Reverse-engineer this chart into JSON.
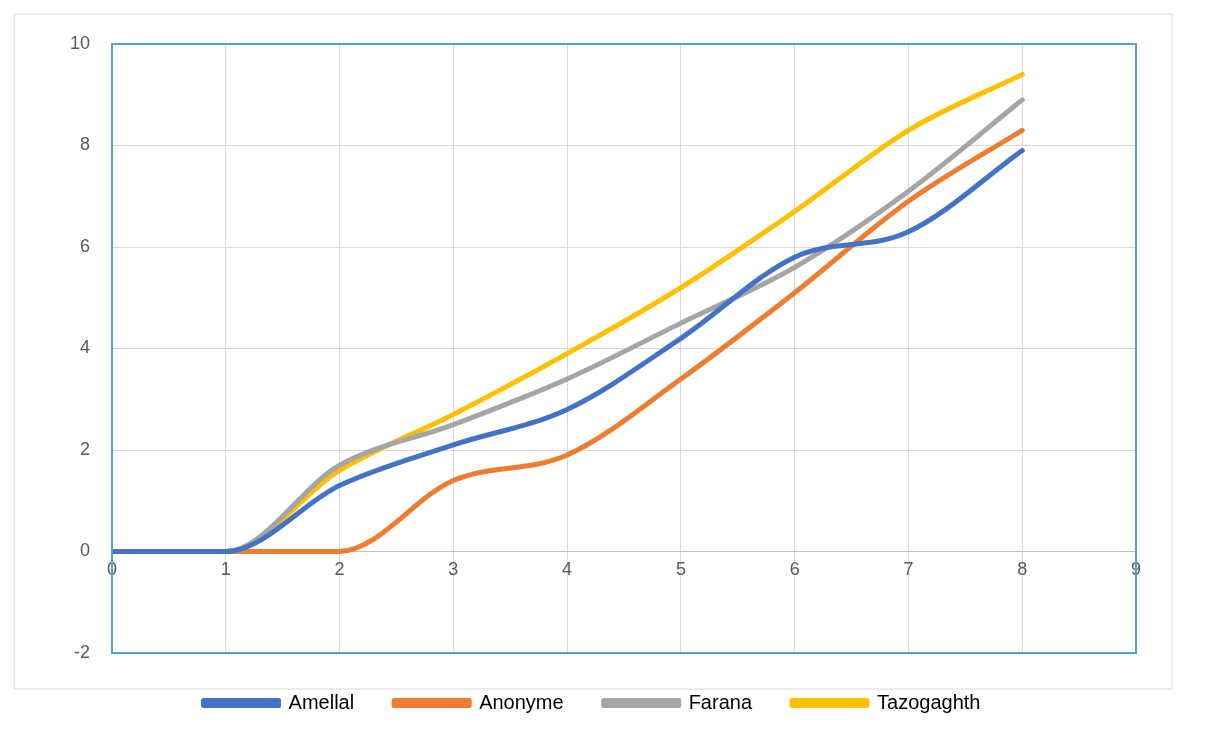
{
  "chart_data": {
    "type": "line",
    "x": [
      0,
      1,
      2,
      3,
      4,
      5,
      6,
      7,
      8
    ],
    "series": [
      {
        "name": "Amellal",
        "color": "#4472c4",
        "values": [
          0,
          0,
          1.3,
          2.1,
          2.8,
          4.2,
          5.8,
          6.3,
          7.9
        ]
      },
      {
        "name": "Anonyme",
        "color": "#ed7d31",
        "values": [
          0,
          0,
          0,
          1.4,
          1.9,
          3.4,
          5.1,
          6.9,
          8.3
        ]
      },
      {
        "name": "Farana",
        "color": "#a5a5a5",
        "values": [
          0,
          0,
          1.7,
          2.5,
          3.4,
          4.5,
          5.6,
          7.1,
          8.9
        ]
      },
      {
        "name": "Tazogaghth",
        "color": "#ffc000",
        "values": [
          0,
          0,
          1.6,
          2.7,
          3.9,
          5.2,
          6.7,
          8.3,
          9.4
        ]
      }
    ],
    "xlim": [
      0,
      9
    ],
    "xticks": [
      0,
      1,
      2,
      3,
      4,
      5,
      6,
      7,
      8,
      9
    ],
    "ylim": [
      -2,
      10
    ],
    "yticks": [
      -2,
      0,
      2,
      4,
      6,
      8,
      10
    ],
    "grid": true,
    "legend": "bottom",
    "marker": "none",
    "line_style": "solid"
  }
}
